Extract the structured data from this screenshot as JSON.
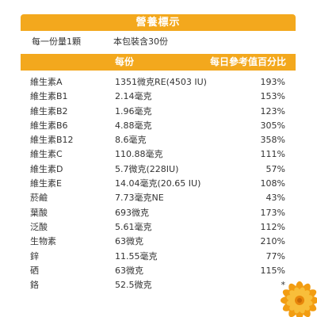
{
  "title": "營養標示",
  "serving": {
    "per_serving": "每一份量1顆",
    "servings_per_pack": "本包裝含30份"
  },
  "header": {
    "col_amount": "每份",
    "col_percent": "每日參考值百分比"
  },
  "rows": [
    {
      "name": "維生素A",
      "amount": "1351微克RE(4503 IU)",
      "pct": "193%"
    },
    {
      "name": "維生素B1",
      "amount": "2.14毫克",
      "pct": "153%"
    },
    {
      "name": "維生素B2",
      "amount": "1.96毫克",
      "pct": "123%"
    },
    {
      "name": "維生素B6",
      "amount": "4.88毫克",
      "pct": "305%"
    },
    {
      "name": "維生素B12",
      "amount": "8.6毫克",
      "pct": "358%"
    },
    {
      "name": "維生素C",
      "amount": "110.88毫克",
      "pct": "111%"
    },
    {
      "name": "維生素D",
      "amount": "5.7微克(228IU)",
      "pct": "57%"
    },
    {
      "name": "維生素E",
      "amount": "14.04毫克(20.65 IU)",
      "pct": "108%"
    },
    {
      "name": "菸鹼",
      "amount": "7.73毫克NE",
      "pct": "43%"
    },
    {
      "name": "葉酸",
      "amount": "693微克",
      "pct": "173%"
    },
    {
      "name": "泛酸",
      "amount": "5.61毫克",
      "pct": "112%"
    },
    {
      "name": "生物素",
      "amount": "63微克",
      "pct": "210%"
    },
    {
      "name": "鋅",
      "amount": "11.55毫克",
      "pct": "77%"
    },
    {
      "name": "硒",
      "amount": "63微克",
      "pct": "115%"
    },
    {
      "name": "鉻",
      "amount": "52.5微克",
      "pct": "*"
    }
  ],
  "colors": {
    "accent": "#f3a81d",
    "text": "#333333"
  }
}
